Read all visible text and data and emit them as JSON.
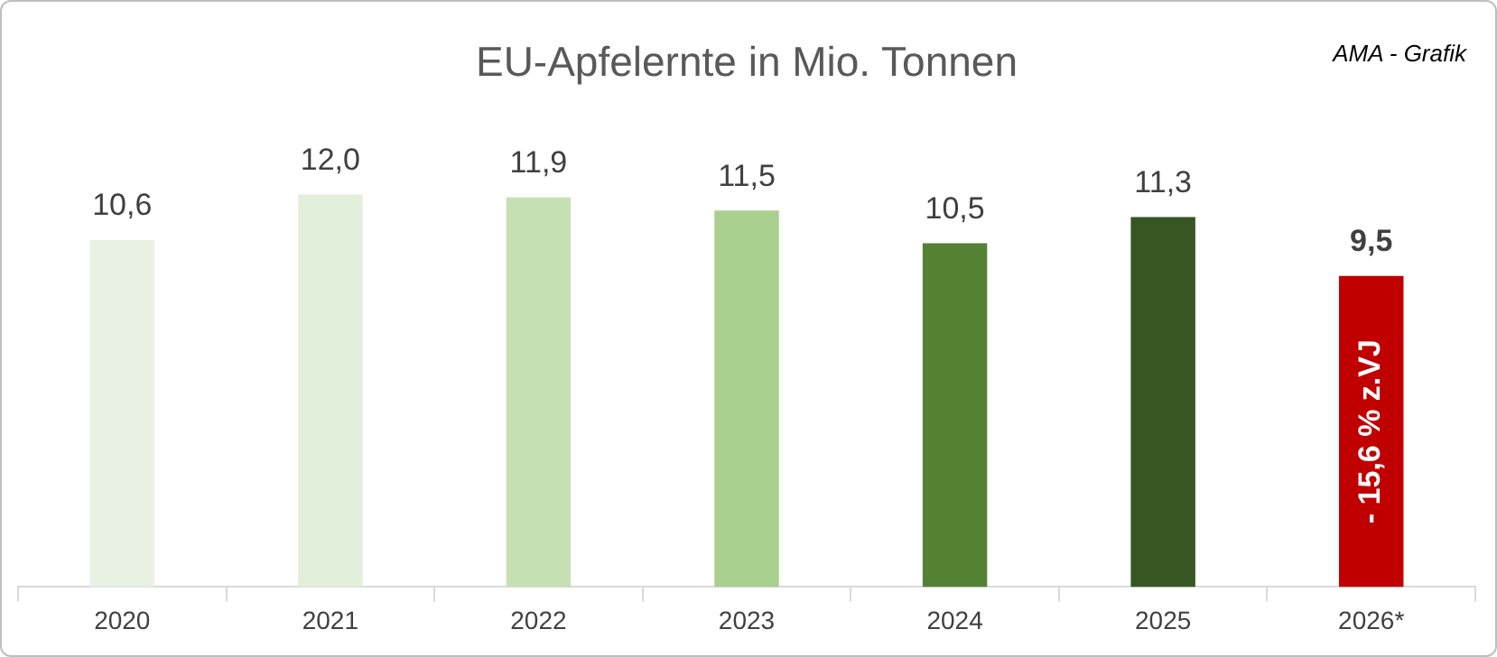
{
  "chart_data": {
    "type": "bar",
    "title": "EU-Apfelernte in Mio. Tonnen",
    "categories": [
      "2020",
      "2021",
      "2022",
      "2023",
      "2024",
      "2025",
      "2026*"
    ],
    "values": [
      10.6,
      12.0,
      11.9,
      11.5,
      10.5,
      11.3,
      9.5
    ],
    "colors": [
      "#e9f1e3",
      "#e2efda",
      "#c6e0b4",
      "#a9d08e",
      "#548235",
      "#375623",
      "#c00000"
    ],
    "value_labels": [
      "10,6",
      "12,0",
      "11,9",
      "11,5",
      "10,5",
      "11,3",
      "9,5"
    ],
    "annotations": [
      "AMA - Grafik",
      "- 15,6 % z.VJ"
    ],
    "grid": false,
    "legend": false
  }
}
